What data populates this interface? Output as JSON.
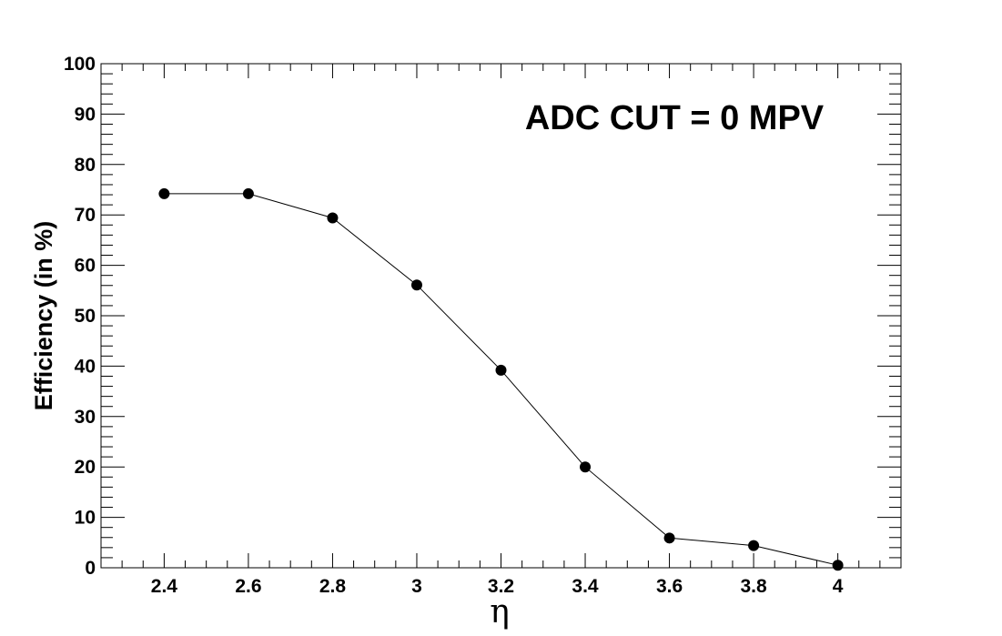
{
  "chart_data": {
    "type": "line",
    "xlabel": "η",
    "ylabel": "Efficiency (in %)",
    "annotation": "ADC CUT = 0 MPV",
    "xlim": [
      2.25,
      4.15
    ],
    "ylim": [
      0,
      100
    ],
    "x_ticks": [
      2.4,
      2.6,
      2.8,
      3,
      3.2,
      3.4,
      3.6,
      3.8,
      4
    ],
    "x_tick_labels": [
      "2.4",
      "2.6",
      "2.8",
      "3",
      "3.2",
      "3.4",
      "3.6",
      "3.8",
      "4"
    ],
    "y_ticks": [
      0,
      10,
      20,
      30,
      40,
      50,
      60,
      70,
      80,
      90,
      100
    ],
    "y_tick_labels": [
      "0",
      "10",
      "20",
      "30",
      "40",
      "50",
      "60",
      "70",
      "80",
      "90",
      "100"
    ],
    "grid": false,
    "series": [
      {
        "x": [
          2.4,
          2.6,
          2.8,
          3.0,
          3.2,
          3.4,
          3.6,
          3.8,
          4.0
        ],
        "values": [
          74.2,
          74.2,
          69.4,
          56.1,
          39.2,
          20.0,
          5.9,
          4.4,
          0.5
        ],
        "color": "#000000"
      }
    ]
  }
}
